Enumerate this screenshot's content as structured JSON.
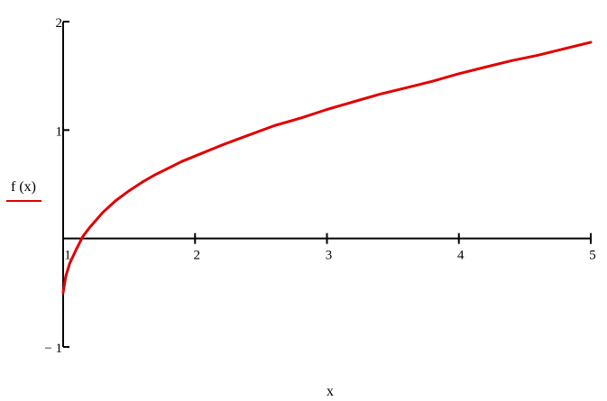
{
  "chart_data": {
    "type": "line",
    "xlabel": "x",
    "ylabel": "f (x)",
    "xlim": [
      1,
      5
    ],
    "ylim": [
      -1,
      2
    ],
    "x_ticks": [
      {
        "value": 1,
        "label": "1"
      },
      {
        "value": 2,
        "label": "2"
      },
      {
        "value": 3,
        "label": "3"
      },
      {
        "value": 4,
        "label": "4"
      },
      {
        "value": 5,
        "label": "5"
      }
    ],
    "y_ticks": [
      {
        "value": 2,
        "label": "2"
      },
      {
        "value": 1,
        "label": "1"
      },
      {
        "value": -1,
        "label": "− 1"
      }
    ],
    "grid": false,
    "legend": "none",
    "series": [
      {
        "color": "#e00000",
        "x": [
          1.0,
          1.02,
          1.05,
          1.1,
          1.15,
          1.2,
          1.3,
          1.4,
          1.5,
          1.6,
          1.7,
          1.8,
          1.9,
          2.0,
          2.2,
          2.4,
          2.6,
          2.8,
          3.0,
          3.2,
          3.4,
          3.6,
          3.8,
          4.0,
          4.2,
          4.4,
          4.6,
          4.8,
          5.0
        ],
        "y": [
          -0.5,
          -0.35,
          -0.23,
          -0.1,
          0.02,
          0.1,
          0.24,
          0.35,
          0.44,
          0.52,
          0.59,
          0.65,
          0.71,
          0.76,
          0.86,
          0.95,
          1.04,
          1.11,
          1.19,
          1.26,
          1.33,
          1.39,
          1.45,
          1.52,
          1.58,
          1.64,
          1.69,
          1.75,
          1.81
        ]
      }
    ]
  }
}
